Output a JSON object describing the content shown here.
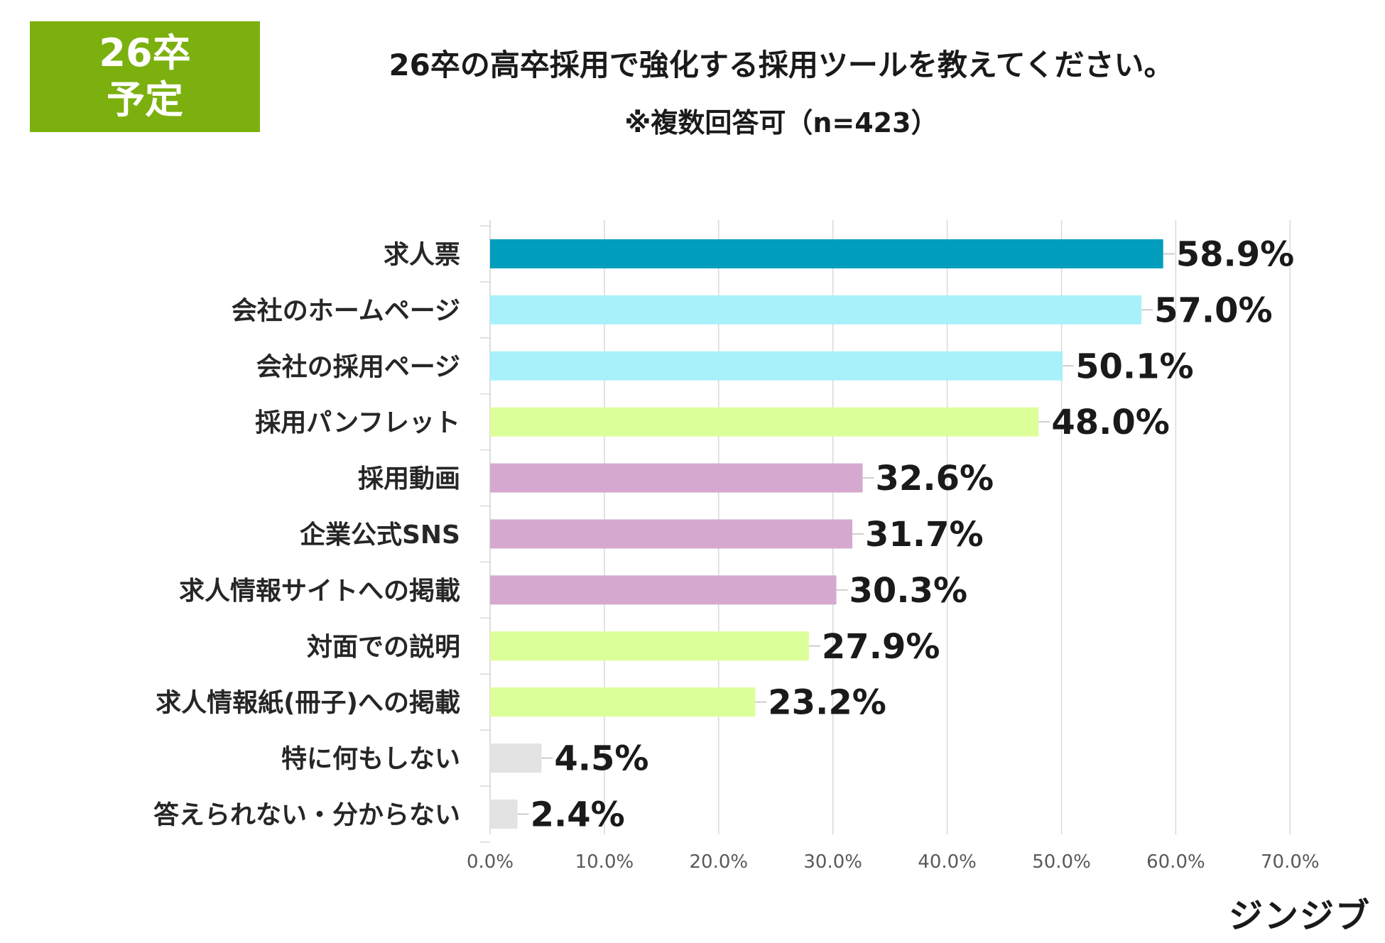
{
  "badge": {
    "line1": "26卒",
    "line2": "予定"
  },
  "header": {
    "title": "26卒の高卒採用で強化する採用ツールを教えてください。",
    "subtitle": "※複数回答可（n=423）"
  },
  "brand": {
    "logo": "ジンジブ"
  },
  "colors": {
    "badge": "#7bb00f",
    "teal": "#009dbd",
    "light_blue": "#a8f1fb",
    "light_green": "#ddff99",
    "lavender": "#d5a9cf",
    "gray": "#e3e3e3"
  },
  "chart_data": {
    "type": "bar",
    "orientation": "horizontal",
    "title": "26卒の高卒採用で強化する採用ツールを教えてください。",
    "subtitle": "※複数回答可（n=423）",
    "xlabel": "",
    "ylabel": "",
    "xlim": [
      0,
      70
    ],
    "grid": true,
    "categories": [
      "求人票",
      "会社のホームページ",
      "会社の採用ページ",
      "採用パンフレット",
      "採用動画",
      "企業公式SNS",
      "求人情報サイトへの掲載",
      "対面での説明",
      "求人情報紙(冊子)への掲載",
      "特に何もしない",
      "答えられない・分からない"
    ],
    "values": [
      58.9,
      57.0,
      50.1,
      48.0,
      32.6,
      31.7,
      30.3,
      27.9,
      23.2,
      4.5,
      2.4
    ],
    "value_labels": [
      "58.9%",
      "57.0%",
      "50.1%",
      "48.0%",
      "32.6%",
      "31.7%",
      "30.3%",
      "27.9%",
      "23.2%",
      "4.5%",
      "2.4%"
    ],
    "bar_colors": [
      "teal",
      "light_blue",
      "light_blue",
      "light_green",
      "lavender",
      "lavender",
      "lavender",
      "light_green",
      "light_green",
      "gray",
      "gray"
    ],
    "x_ticks": [
      0,
      10,
      20,
      30,
      40,
      50,
      60,
      70
    ],
    "x_tick_labels": [
      "0.0%",
      "10.0%",
      "20.0%",
      "30.0%",
      "40.0%",
      "50.0%",
      "60.0%",
      "70.0%"
    ]
  }
}
